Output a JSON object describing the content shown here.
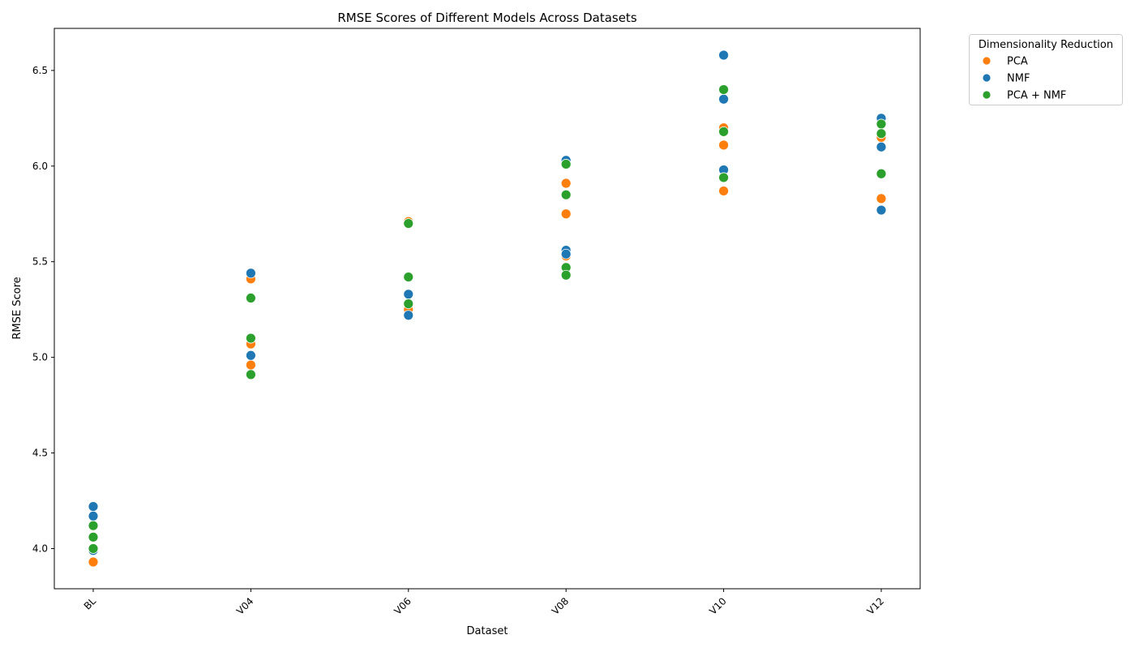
{
  "chart_data": {
    "type": "scatter",
    "title": "RMSE Scores of Different Models Across Datasets",
    "xlabel": "Dataset",
    "ylabel": "RMSE Score",
    "categories": [
      "BL",
      "V04",
      "V06",
      "V08",
      "V10",
      "V12"
    ],
    "ylim": [
      3.79,
      6.72
    ],
    "yticks": [
      4.0,
      4.5,
      5.0,
      5.5,
      6.0,
      6.5
    ],
    "ytick_labels": [
      "4.0",
      "4.5",
      "5.0",
      "5.5",
      "6.0",
      "6.5"
    ],
    "grid": false,
    "legend": {
      "title": "Dimensionality Reduction",
      "placement": "outside-top-right"
    },
    "series": [
      {
        "name": "PCA",
        "color": "#ff7f0e",
        "points": [
          {
            "x": "BL",
            "y": 3.93
          },
          {
            "x": "V04",
            "y": 5.41
          },
          {
            "x": "V04",
            "y": 5.07
          },
          {
            "x": "V04",
            "y": 4.96
          },
          {
            "x": "V06",
            "y": 5.71
          },
          {
            "x": "V06",
            "y": 5.25
          },
          {
            "x": "V08",
            "y": 5.91
          },
          {
            "x": "V08",
            "y": 5.75
          },
          {
            "x": "V08",
            "y": 5.53
          },
          {
            "x": "V10",
            "y": 6.2
          },
          {
            "x": "V10",
            "y": 6.11
          },
          {
            "x": "V10",
            "y": 5.87
          },
          {
            "x": "V12",
            "y": 6.15
          },
          {
            "x": "V12",
            "y": 5.83
          }
        ]
      },
      {
        "name": "NMF",
        "color": "#1f77b4",
        "points": [
          {
            "x": "BL",
            "y": 4.22
          },
          {
            "x": "BL",
            "y": 4.17
          },
          {
            "x": "BL",
            "y": 3.99
          },
          {
            "x": "V04",
            "y": 5.44
          },
          {
            "x": "V04",
            "y": 5.01
          },
          {
            "x": "V06",
            "y": 5.33
          },
          {
            "x": "V06",
            "y": 5.22
          },
          {
            "x": "V08",
            "y": 6.03
          },
          {
            "x": "V08",
            "y": 5.85
          },
          {
            "x": "V08",
            "y": 5.56
          },
          {
            "x": "V08",
            "y": 5.54
          },
          {
            "x": "V10",
            "y": 6.58
          },
          {
            "x": "V10",
            "y": 6.35
          },
          {
            "x": "V10",
            "y": 5.98
          },
          {
            "x": "V12",
            "y": 6.25
          },
          {
            "x": "V12",
            "y": 6.1
          },
          {
            "x": "V12",
            "y": 5.77
          }
        ]
      },
      {
        "name": "PCA + NMF",
        "color": "#2ca02c",
        "points": [
          {
            "x": "BL",
            "y": 4.12
          },
          {
            "x": "BL",
            "y": 4.06
          },
          {
            "x": "BL",
            "y": 4.0
          },
          {
            "x": "V04",
            "y": 5.31
          },
          {
            "x": "V04",
            "y": 5.1
          },
          {
            "x": "V04",
            "y": 4.91
          },
          {
            "x": "V06",
            "y": 5.7
          },
          {
            "x": "V06",
            "y": 5.42
          },
          {
            "x": "V06",
            "y": 5.28
          },
          {
            "x": "V08",
            "y": 6.01
          },
          {
            "x": "V08",
            "y": 5.85
          },
          {
            "x": "V08",
            "y": 5.47
          },
          {
            "x": "V08",
            "y": 5.43
          },
          {
            "x": "V10",
            "y": 6.4
          },
          {
            "x": "V10",
            "y": 6.18
          },
          {
            "x": "V10",
            "y": 5.94
          },
          {
            "x": "V12",
            "y": 6.22
          },
          {
            "x": "V12",
            "y": 6.17
          },
          {
            "x": "V12",
            "y": 5.96
          }
        ]
      }
    ]
  }
}
